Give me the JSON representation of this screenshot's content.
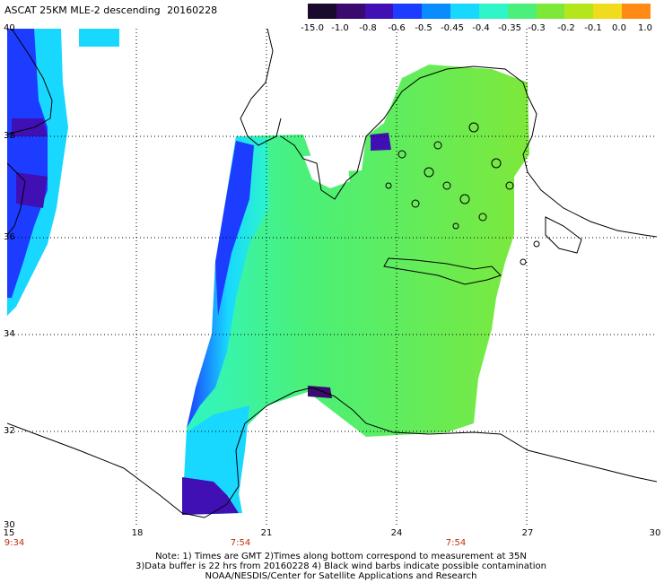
{
  "header": {
    "title": "ASCAT 25KM MLE-2 descending",
    "date": "20160228"
  },
  "colorbar": {
    "labels": [
      "-15.0",
      "-1.0",
      "-0.8",
      "-0.6",
      "-0.5",
      "-0.45",
      "-0.4",
      "-0.35",
      "-0.3",
      "-0.2",
      "-0.1",
      "0.0",
      "1.0"
    ],
    "colors": [
      "#1a0a2e",
      "#3a0a6e",
      "#4010b4",
      "#1c3cff",
      "#0a8cff",
      "#18d8ff",
      "#2ef6c8",
      "#4af079",
      "#7ee83a",
      "#b4e61c",
      "#f0dc1c",
      "#ff8a14",
      "#ff3810"
    ]
  },
  "map": {
    "lat_labels": [
      "40",
      "38",
      "36",
      "34",
      "32",
      "30"
    ],
    "lon_labels": [
      "15",
      "18",
      "21",
      "24",
      "27",
      "30"
    ],
    "time_labels": [
      "9:34",
      "7:54",
      "7:54"
    ]
  },
  "footer": {
    "note_line1": "Note: 1) Times are GMT 2)Times along bottom correspond to measurement at 35N",
    "note_line2": "3)Data buffer is 22 hrs from 20160228 4) Black wind barbs indicate possible contamination",
    "note_line3": "NOAA/NESDIS/Center for Satellite Applications and Research"
  }
}
